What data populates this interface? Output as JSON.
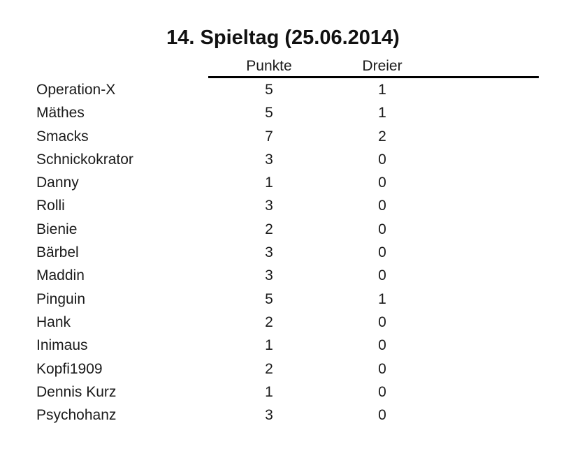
{
  "title": "14. Spieltag (25.06.2014)",
  "table": {
    "header": {
      "punkte": "Punkte",
      "dreier": "Dreier"
    },
    "rows": [
      {
        "name": "Operation-X",
        "punkte": "5",
        "dreier": "1"
      },
      {
        "name": "Mäthes",
        "punkte": "5",
        "dreier": "1"
      },
      {
        "name": "Smacks",
        "punkte": "7",
        "dreier": "2"
      },
      {
        "name": "Schnickokrator",
        "punkte": "3",
        "dreier": "0"
      },
      {
        "name": "Danny",
        "punkte": "1",
        "dreier": "0"
      },
      {
        "name": "Rolli",
        "punkte": "3",
        "dreier": "0"
      },
      {
        "name": "Bienie",
        "punkte": "2",
        "dreier": "0"
      },
      {
        "name": "Bärbel",
        "punkte": "3",
        "dreier": "0"
      },
      {
        "name": "Maddin",
        "punkte": "3",
        "dreier": "0"
      },
      {
        "name": "Pinguin",
        "punkte": "5",
        "dreier": "1"
      },
      {
        "name": "Hank",
        "punkte": "2",
        "dreier": "0"
      },
      {
        "name": "Inimaus",
        "punkte": "1",
        "dreier": "0"
      },
      {
        "name": "Kopfi1909",
        "punkte": "2",
        "dreier": "0"
      },
      {
        "name": "Dennis Kurz",
        "punkte": "1",
        "dreier": "0"
      },
      {
        "name": "Psychohanz",
        "punkte": "3",
        "dreier": "0"
      }
    ]
  },
  "colors": {
    "text": "#1b1b1b",
    "rule": "#000000",
    "background": "#ffffff"
  }
}
